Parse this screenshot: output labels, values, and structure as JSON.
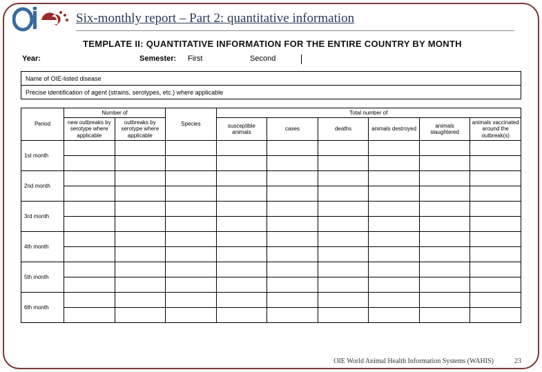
{
  "colors": {
    "border": "#7a3a3a",
    "title": "#2b3a57",
    "logo_o": "#3a6aa0",
    "logo_i": "#3a6aa0",
    "logo_e": "#9a2a2a",
    "text": "#000000"
  },
  "header": {
    "title": "Six-monthly report – Part 2: quantitative information"
  },
  "template": {
    "title": "TEMPLATE II: QUANTITATIVE INFORMATION FOR THE ENTIRE COUNTRY BY MONTH",
    "year_label": "Year:",
    "semester_label": "Semester:",
    "first_label": "First",
    "second_label": "Second"
  },
  "info_rows": {
    "disease": "Name of OIE-listed disease",
    "agent": "Precise identification of agent (strains, serotypes, etc.) where applicable"
  },
  "table": {
    "group_number_of": "Number of",
    "group_total_number_of": "Total number of",
    "col_period": "Period",
    "col_new_outbreaks_serotype": "new outbreaks by serotype where applicable",
    "col_outbreaks_serotype": "outbreaks by serotype where applicable",
    "col_species": "Species",
    "col_susceptible": "susceptible animals",
    "col_cases": "cases",
    "col_deaths": "deaths",
    "col_destroyed": "animals destroyed",
    "col_slaughtered": "animals slaughtered",
    "col_vaccinated": "animals vaccinated around the outbreak(s)",
    "rows": [
      "1st month",
      "2nd month",
      "3rd month",
      "4th month",
      "5th month",
      "6th month"
    ]
  },
  "footer": {
    "text": "OIE World Animal Health Information Systems (WAHIS)",
    "page": "23"
  }
}
